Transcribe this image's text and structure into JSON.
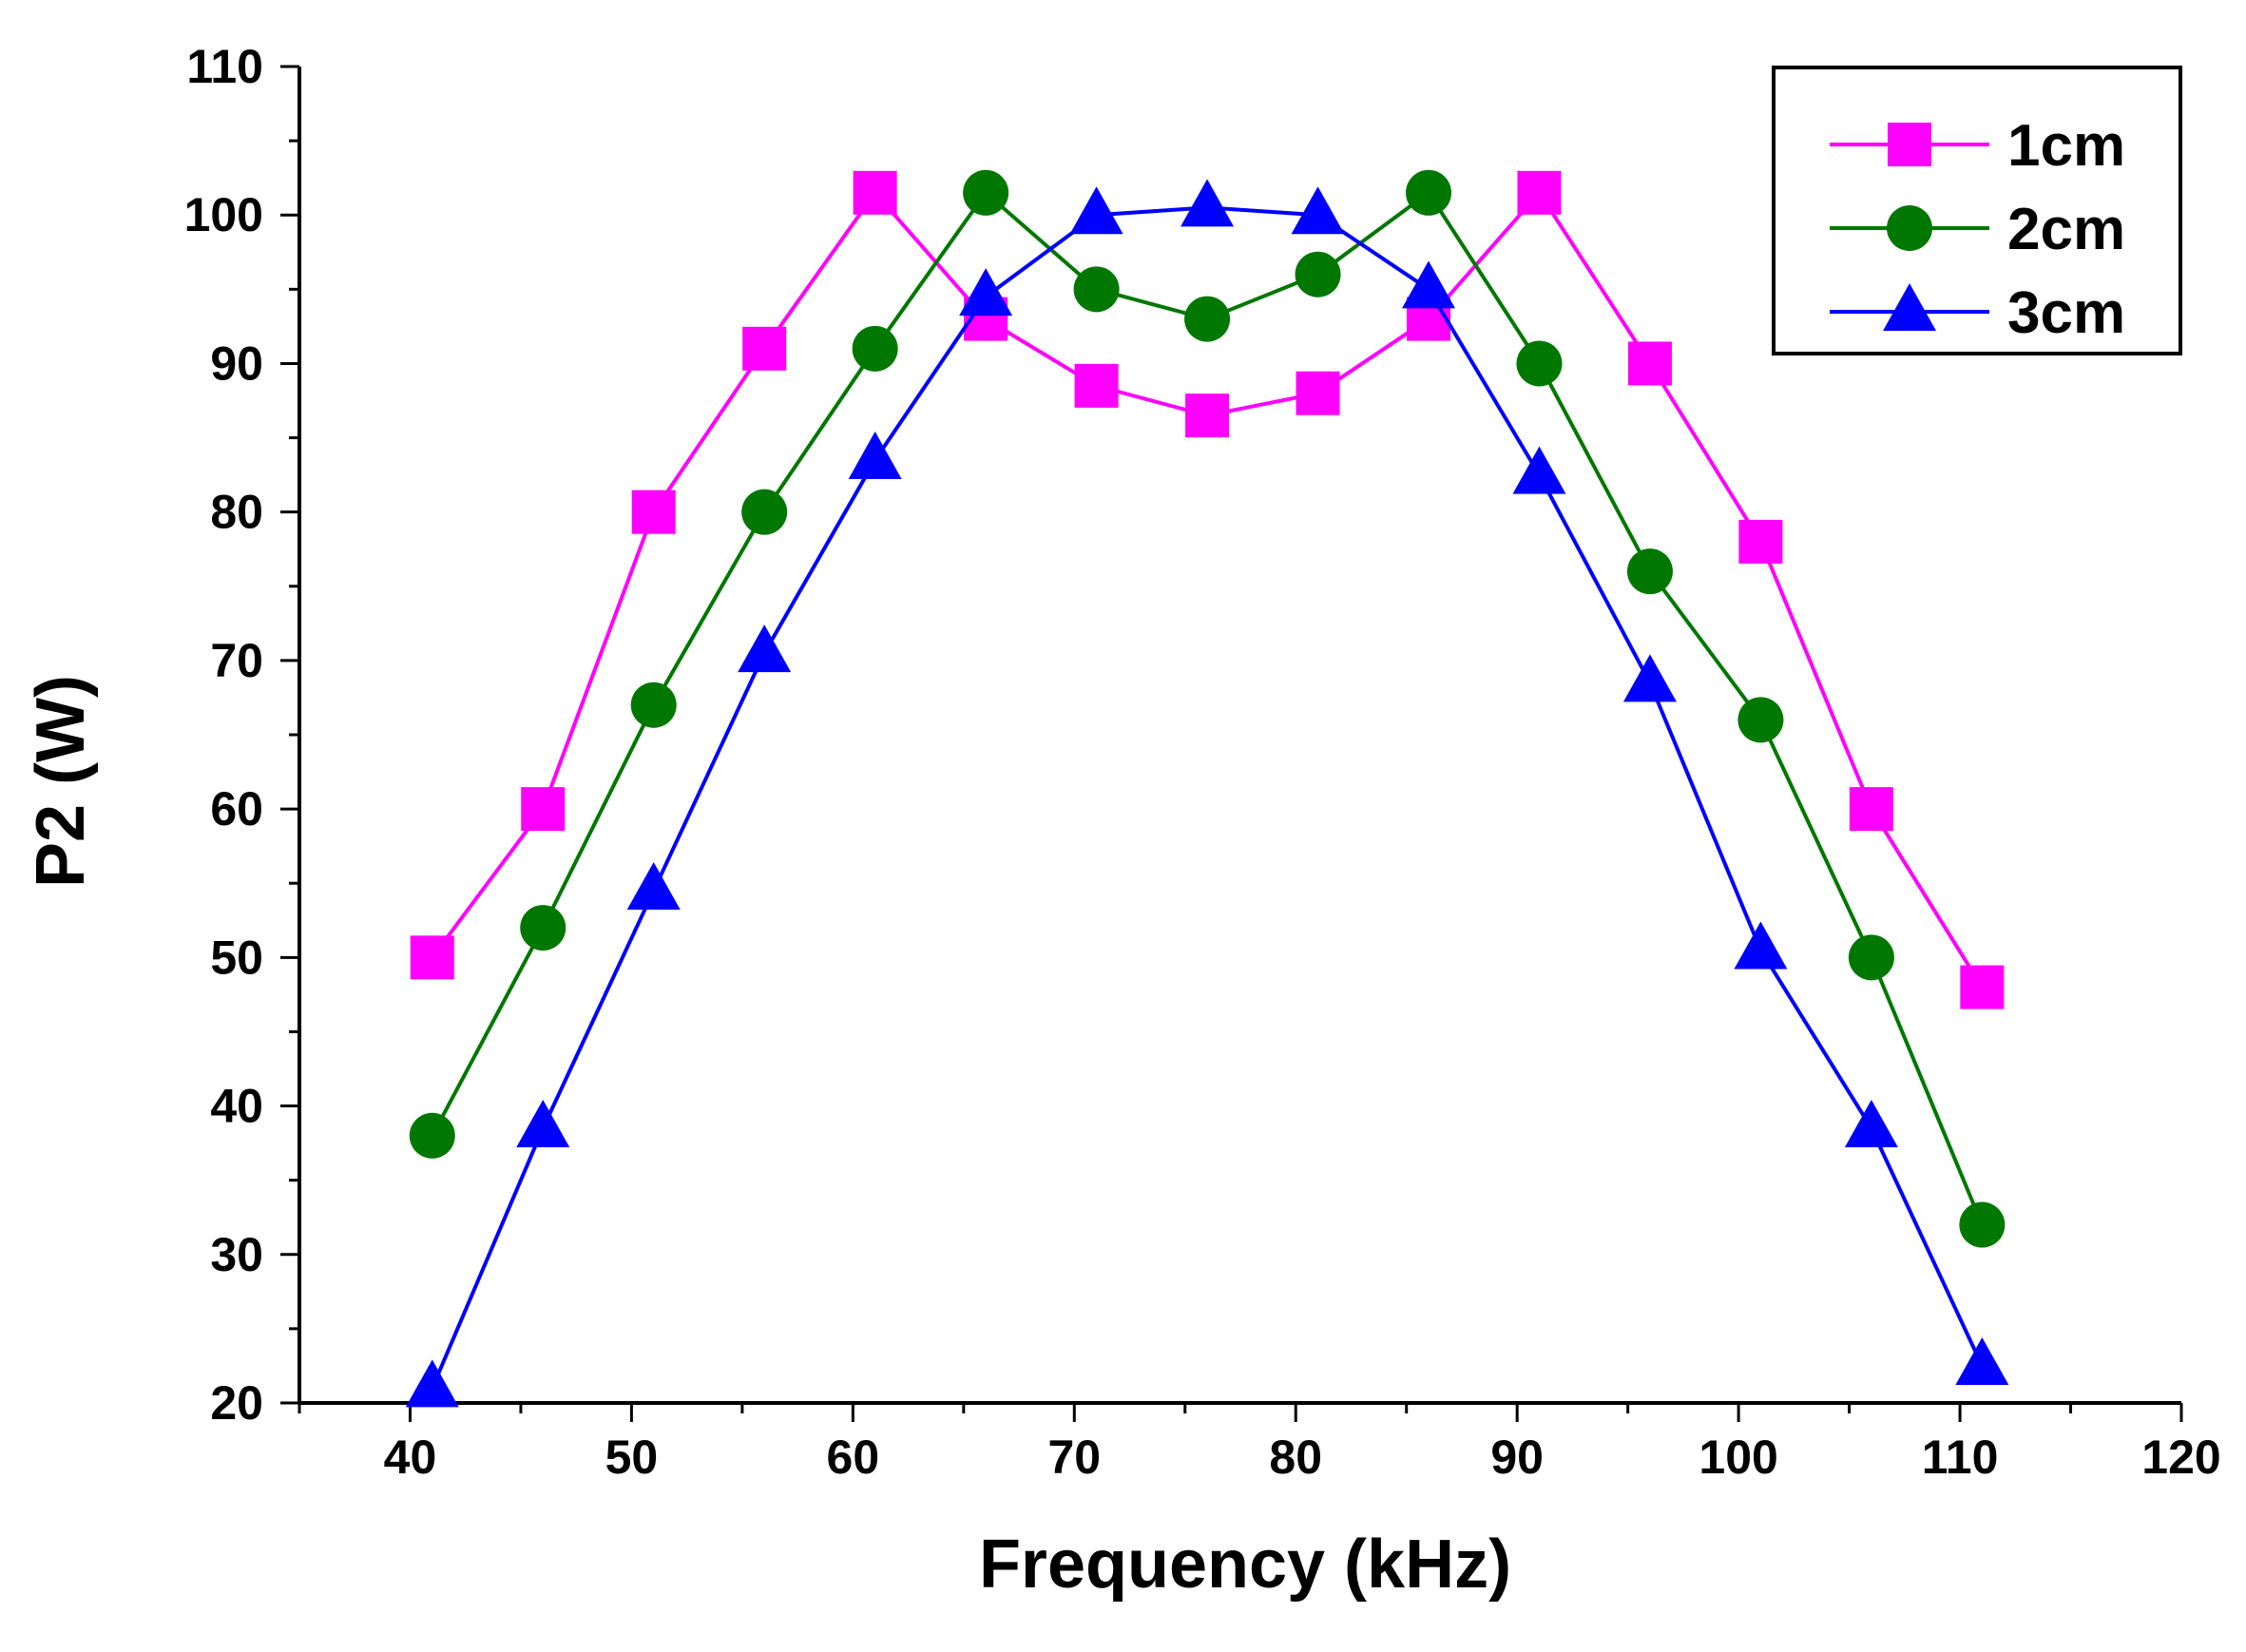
{
  "chart_data": {
    "type": "line",
    "xlabel": "Frequency (kHz)",
    "ylabel": "P2 (W)",
    "xlim": [
      35,
      120
    ],
    "ylim": [
      20,
      110
    ],
    "x_ticks": [
      40,
      50,
      60,
      70,
      80,
      90,
      100,
      110,
      120
    ],
    "y_ticks": [
      20,
      30,
      40,
      50,
      60,
      70,
      80,
      90,
      100,
      110
    ],
    "legend_position": "top-right",
    "x": [
      41,
      46,
      51,
      56,
      61,
      66,
      71,
      76,
      81,
      86,
      91,
      96,
      101,
      106,
      111
    ],
    "series": [
      {
        "name": "1cm",
        "color": "#ff00ff",
        "marker": "square",
        "values": [
          50,
          60,
          80,
          91,
          101.5,
          93,
          88.5,
          86.5,
          88,
          93,
          101.5,
          90,
          78,
          60,
          48
        ]
      },
      {
        "name": "2cm",
        "color": "#007800",
        "marker": "circle",
        "values": [
          38,
          52,
          67,
          80,
          91,
          101.5,
          95,
          93,
          96,
          101.5,
          90,
          76,
          66,
          50,
          32
        ]
      },
      {
        "name": "3cm",
        "color": "#0000ff",
        "marker": "triangle",
        "values": [
          21,
          38.5,
          54.5,
          70.5,
          83.5,
          94.5,
          100,
          100.5,
          100,
          95,
          82.5,
          68.5,
          50.5,
          38.5,
          22.5
        ]
      }
    ]
  }
}
